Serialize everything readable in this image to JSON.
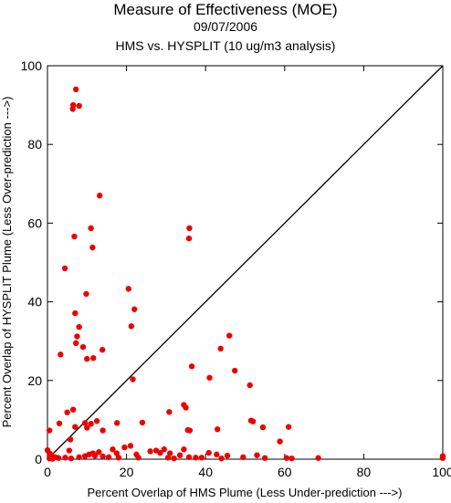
{
  "chart_data": {
    "type": "scatter",
    "title": "Measure of Effectiveness (MOE)",
    "subtitle": "09/07/2006",
    "subtitle2": "HMS vs. HYSPLIT  (10 ug/m3 analysis)",
    "xlabel": "Percent Overlap of HMS Plume (Less Under-prediction --->)",
    "ylabel": "Percent Overlap of HYSPLIT Plume (Less Over-prediction --->)",
    "xlim": [
      0,
      100
    ],
    "ylim": [
      0,
      100
    ],
    "xticks": [
      "0",
      "20",
      "40",
      "60",
      "80",
      "100"
    ],
    "yticks": [
      "0",
      "20",
      "40",
      "60",
      "80",
      "100"
    ],
    "grid": false,
    "reference_line": "diagonal y = x",
    "point_color": "#ee0000",
    "points": [
      [
        7.2,
        94
      ],
      [
        6.5,
        90
      ],
      [
        6.4,
        89
      ],
      [
        8.0,
        89.8
      ],
      [
        13.2,
        67
      ],
      [
        11.0,
        58.7
      ],
      [
        6.8,
        56.6
      ],
      [
        11.4,
        53.8
      ],
      [
        4.4,
        48.5
      ],
      [
        20.5,
        43.3
      ],
      [
        9.8,
        42
      ],
      [
        22.0,
        38.1
      ],
      [
        7.0,
        37.1
      ],
      [
        21.2,
        33.8
      ],
      [
        8.0,
        33.6
      ],
      [
        7.5,
        31.2
      ],
      [
        7.2,
        29.5
      ],
      [
        9.0,
        28.5
      ],
      [
        13.9,
        27.8
      ],
      [
        3.3,
        26.6
      ],
      [
        10.0,
        25.5
      ],
      [
        11.6,
        25.7
      ],
      [
        21.6,
        20.3
      ],
      [
        6.5,
        12.6
      ],
      [
        5.0,
        11.9
      ],
      [
        12.5,
        9.7
      ],
      [
        9.5,
        9.2
      ],
      [
        11.0,
        9.0
      ],
      [
        3.0,
        9.1
      ],
      [
        10.0,
        8.0
      ],
      [
        0.5,
        7.3
      ],
      [
        14.0,
        7.3
      ],
      [
        5.8,
        5.0
      ],
      [
        17.6,
        9.2
      ],
      [
        35.9,
        58.7
      ],
      [
        35.8,
        56.1
      ],
      [
        36.5,
        23.6
      ],
      [
        34.5,
        13.8
      ],
      [
        35.0,
        13.1
      ],
      [
        35.5,
        7.4
      ],
      [
        36.0,
        7.3
      ],
      [
        43.8,
        28.1
      ],
      [
        46.0,
        31.4
      ],
      [
        47.4,
        22.5
      ],
      [
        41.0,
        20.7
      ],
      [
        51.2,
        18.8
      ],
      [
        43.0,
        7.6
      ],
      [
        51.5,
        9.8
      ],
      [
        52.0,
        9.6
      ],
      [
        54.5,
        8.1
      ],
      [
        61.0,
        8.2
      ],
      [
        58.8,
        4.5
      ],
      [
        24.0,
        9.3
      ],
      [
        30.8,
        12.0
      ],
      [
        0.0,
        2.3
      ],
      [
        0.5,
        1.5
      ],
      [
        1.0,
        1.0
      ],
      [
        1.5,
        0.5
      ],
      [
        0.5,
        0.2
      ],
      [
        2.0,
        0.5
      ],
      [
        1.3,
        0.1
      ],
      [
        2.8,
        0.3
      ],
      [
        4.5,
        0.4
      ],
      [
        5.5,
        2.2
      ],
      [
        6.0,
        0.2
      ],
      [
        8.0,
        0.5
      ],
      [
        9.5,
        0.8
      ],
      [
        10.5,
        1.2
      ],
      [
        11.5,
        1.5
      ],
      [
        12.0,
        0.9
      ],
      [
        13.0,
        1.8
      ],
      [
        14.0,
        0.7
      ],
      [
        15.5,
        0.5
      ],
      [
        16.5,
        2.5
      ],
      [
        17.5,
        1.5
      ],
      [
        18.0,
        0.4
      ],
      [
        19.5,
        3.0
      ],
      [
        21.0,
        3.4
      ],
      [
        22.5,
        1.2
      ],
      [
        23.0,
        0.4
      ],
      [
        26.0,
        2.0
      ],
      [
        27.5,
        2.2
      ],
      [
        28.5,
        1.6
      ],
      [
        29.5,
        2.5
      ],
      [
        30.5,
        0.4
      ],
      [
        31.0,
        1.5
      ],
      [
        33.5,
        1.0
      ],
      [
        34.5,
        2.5
      ],
      [
        35.8,
        0.5
      ],
      [
        37.5,
        0.4
      ],
      [
        39.0,
        0.4
      ],
      [
        40.8,
        1.6
      ],
      [
        42.8,
        1.2
      ],
      [
        44.0,
        0.2
      ],
      [
        45.5,
        0.9
      ],
      [
        49.5,
        0.5
      ],
      [
        53.0,
        1.0
      ],
      [
        55.0,
        0.3
      ],
      [
        60.5,
        0.3
      ],
      [
        61.8,
        0.2
      ],
      [
        68.5,
        0.3
      ],
      [
        100.0,
        0.3
      ],
      [
        100.0,
        0.5
      ],
      [
        100.0,
        0.8
      ],
      [
        32.0,
        0.2
      ],
      [
        7.0,
        8.2
      ]
    ]
  }
}
